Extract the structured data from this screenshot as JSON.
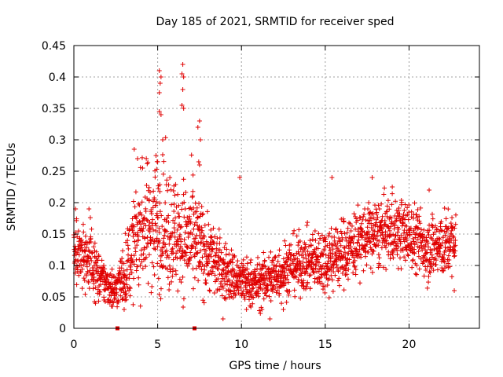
{
  "chart_data": {
    "type": "scatter",
    "title": "Day 185 of 2021, SRMTID for receiver sped",
    "xlabel": "GPS time / hours",
    "ylabel": "SRMTID / TECUs",
    "xlim": [
      0,
      24.2
    ],
    "ylim": [
      0,
      0.45
    ],
    "xticks": [
      0,
      5,
      10,
      15,
      20
    ],
    "yticks": [
      0,
      0.05,
      0.1,
      0.15,
      0.2,
      0.25,
      0.3,
      0.35,
      0.4,
      0.45
    ],
    "grid": true,
    "marker": "plus",
    "color": "#e00000",
    "series": [
      {
        "name": "SRMTID",
        "profile_note": "approximate envelope of the dense point cloud read from the figure",
        "profile": [
          {
            "x": 0.0,
            "mean": 0.12,
            "spread": 0.035
          },
          {
            "x": 1.0,
            "mean": 0.11,
            "spread": 0.035
          },
          {
            "x": 1.5,
            "mean": 0.08,
            "spread": 0.025
          },
          {
            "x": 2.5,
            "mean": 0.06,
            "spread": 0.02
          },
          {
            "x": 3.2,
            "mean": 0.1,
            "spread": 0.04
          },
          {
            "x": 4.0,
            "mean": 0.16,
            "spread": 0.06
          },
          {
            "x": 5.0,
            "mean": 0.17,
            "spread": 0.07
          },
          {
            "x": 6.0,
            "mean": 0.15,
            "spread": 0.06
          },
          {
            "x": 7.0,
            "mean": 0.14,
            "spread": 0.06
          },
          {
            "x": 8.0,
            "mean": 0.12,
            "spread": 0.04
          },
          {
            "x": 9.0,
            "mean": 0.09,
            "spread": 0.03
          },
          {
            "x": 10.0,
            "mean": 0.075,
            "spread": 0.025
          },
          {
            "x": 11.0,
            "mean": 0.07,
            "spread": 0.025
          },
          {
            "x": 12.0,
            "mean": 0.085,
            "spread": 0.03
          },
          {
            "x": 13.0,
            "mean": 0.1,
            "spread": 0.03
          },
          {
            "x": 14.0,
            "mean": 0.105,
            "spread": 0.03
          },
          {
            "x": 15.0,
            "mean": 0.11,
            "spread": 0.035
          },
          {
            "x": 16.0,
            "mean": 0.12,
            "spread": 0.035
          },
          {
            "x": 17.0,
            "mean": 0.14,
            "spread": 0.035
          },
          {
            "x": 18.0,
            "mean": 0.15,
            "spread": 0.035
          },
          {
            "x": 19.0,
            "mean": 0.155,
            "spread": 0.035
          },
          {
            "x": 20.0,
            "mean": 0.15,
            "spread": 0.035
          },
          {
            "x": 21.0,
            "mean": 0.13,
            "spread": 0.035
          },
          {
            "x": 22.0,
            "mean": 0.13,
            "spread": 0.035
          },
          {
            "x": 22.8,
            "mean": 0.14,
            "spread": 0.03
          }
        ],
        "n_points": 2200,
        "x_range": [
          0.0,
          22.8
        ],
        "notable_points": [
          {
            "x": 5.1,
            "y": 0.41
          },
          {
            "x": 5.2,
            "y": 0.4
          },
          {
            "x": 5.15,
            "y": 0.39
          },
          {
            "x": 5.1,
            "y": 0.375
          },
          {
            "x": 5.1,
            "y": 0.345
          },
          {
            "x": 5.2,
            "y": 0.34
          },
          {
            "x": 6.5,
            "y": 0.42
          },
          {
            "x": 6.45,
            "y": 0.405
          },
          {
            "x": 6.55,
            "y": 0.4
          },
          {
            "x": 6.5,
            "y": 0.38
          },
          {
            "x": 6.45,
            "y": 0.355
          },
          {
            "x": 6.55,
            "y": 0.35
          },
          {
            "x": 7.5,
            "y": 0.33
          },
          {
            "x": 7.4,
            "y": 0.32
          },
          {
            "x": 7.55,
            "y": 0.3
          },
          {
            "x": 7.45,
            "y": 0.265
          },
          {
            "x": 7.5,
            "y": 0.26
          },
          {
            "x": 3.6,
            "y": 0.285
          },
          {
            "x": 3.8,
            "y": 0.27
          },
          {
            "x": 4.1,
            "y": 0.255
          },
          {
            "x": 4.9,
            "y": 0.275
          },
          {
            "x": 5.0,
            "y": 0.265
          },
          {
            "x": 5.3,
            "y": 0.3
          },
          {
            "x": 9.9,
            "y": 0.24
          },
          {
            "x": 15.4,
            "y": 0.24
          },
          {
            "x": 17.8,
            "y": 0.24
          },
          {
            "x": 21.2,
            "y": 0.22
          },
          {
            "x": 19.0,
            "y": 0.225
          },
          {
            "x": 0.9,
            "y": 0.19
          },
          {
            "x": 0.1,
            "y": 0.19
          },
          {
            "x": 8.9,
            "y": 0.015
          },
          {
            "x": 11.7,
            "y": 0.015
          },
          {
            "x": 3.0,
            "y": 0.03
          },
          {
            "x": 2.3,
            "y": 0.035
          },
          {
            "x": 10.3,
            "y": 0.03
          },
          {
            "x": 22.7,
            "y": 0.06
          },
          {
            "x": 12.5,
            "y": 0.03
          }
        ],
        "zero_points": [
          {
            "x": 2.6,
            "y": 0.0
          },
          {
            "x": 7.2,
            "y": 0.0
          }
        ]
      }
    ]
  }
}
